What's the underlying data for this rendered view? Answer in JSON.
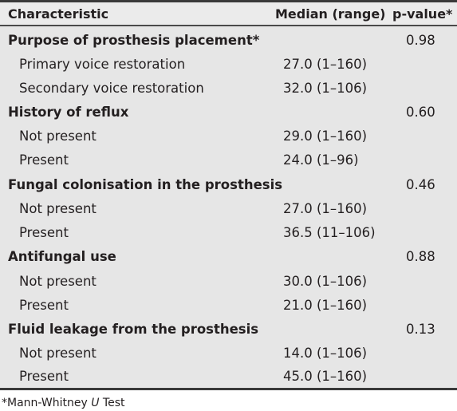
{
  "headers": {
    "characteristic": "Characteristic",
    "median": "Median (range)",
    "p_value": "p-value*"
  },
  "rows": [
    {
      "label": "Purpose of prosthesis placement*",
      "median": "",
      "p": "0.98"
    },
    {
      "label": "Primary voice restoration",
      "median": "27.0 (1–160)",
      "p": ""
    },
    {
      "label": "Secondary voice restoration",
      "median": "32.0 (1–106)",
      "p": ""
    },
    {
      "label": "History of reflux",
      "median": "",
      "p": "0.60"
    },
    {
      "label": "Not present",
      "median": "29.0 (1–160)",
      "p": ""
    },
    {
      "label": "Present",
      "median": "24.0 (1–96)",
      "p": ""
    },
    {
      "label": "Fungal colonisation in the prosthesis",
      "median": "",
      "p": "0.46"
    },
    {
      "label": "Not present",
      "median": "27.0 (1–160)",
      "p": ""
    },
    {
      "label": "Present",
      "median": "36.5 (11–106)",
      "p": ""
    },
    {
      "label": "Antifungal use",
      "median": "",
      "p": "0.88"
    },
    {
      "label": "Not present",
      "median": "30.0 (1–106)",
      "p": ""
    },
    {
      "label": "Present",
      "median": "21.0 (1–160)",
      "p": ""
    },
    {
      "label": "Fluid leakage from the prosthesis",
      "median": "",
      "p": "0.13"
    },
    {
      "label": "Not present",
      "median": "14.0 (1–106)",
      "p": ""
    },
    {
      "label": "Present",
      "median": "45.0 (1–160)",
      "p": ""
    }
  ],
  "footnote": {
    "prefix": "*Mann-Whitney ",
    "italic": "U",
    "suffix": " Test"
  }
}
